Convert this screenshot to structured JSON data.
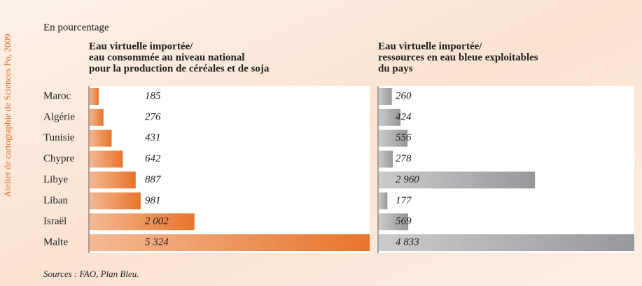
{
  "chart_data": {
    "type": "hbar-panels",
    "subtitle": "En pourcentage",
    "categories": [
      "Maroc",
      "Algérie",
      "Tunisie",
      "Chypre",
      "Libye",
      "Liban",
      "Israël",
      "Malte"
    ],
    "series": [
      {
        "name": [
          "Eau virtuelle importée/",
          "eau consommée au niveau national",
          "pour la production de céréales et de soja"
        ],
        "color": "#e8742a",
        "values": [
          185,
          276,
          431,
          642,
          887,
          981,
          2002,
          5324
        ],
        "value_labels": [
          "185",
          "276",
          "431",
          "642",
          "887",
          "981",
          "2 002",
          "5 324"
        ]
      },
      {
        "name": [
          "Eau virtuelle importée/",
          "ressources en eau bleue exploitables",
          "du pays"
        ],
        "color": "#98989c",
        "values": [
          260,
          424,
          556,
          278,
          2960,
          177,
          569,
          4833
        ],
        "value_labels": [
          "260",
          "424",
          "556",
          "278",
          "2 960",
          "177",
          "569",
          "4 833"
        ]
      }
    ],
    "source": "Sources : FAO, Plan Bleu.",
    "credit": "Atelier de cartographie de Sciences Po, 2009"
  }
}
